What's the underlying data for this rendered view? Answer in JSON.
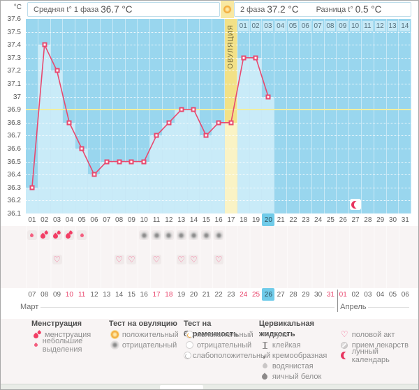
{
  "header": {
    "unit": "°C",
    "phase1_label": "Средняя t° 1 фаза",
    "phase1_value": "36.7 °C",
    "phase2_label": "2 фаза",
    "phase2_value": "37.2 °C",
    "diff_label": "Разница t°",
    "diff_value": "0.5 °C"
  },
  "chart_data": {
    "type": "line",
    "x": [
      1,
      2,
      3,
      4,
      5,
      6,
      7,
      8,
      9,
      10,
      11,
      12,
      13,
      14,
      15,
      16,
      17,
      18,
      19,
      20,
      21,
      22,
      23,
      24,
      25,
      26,
      27,
      28,
      29,
      30,
      31
    ],
    "values": [
      36.3,
      37.4,
      37.2,
      36.8,
      36.6,
      36.4,
      36.5,
      36.5,
      36.5,
      36.5,
      36.7,
      36.8,
      36.9,
      36.9,
      36.7,
      36.8,
      36.8,
      37.3,
      37.3,
      37.0,
      null,
      null,
      null,
      null,
      null,
      null,
      null,
      null,
      null,
      null,
      null
    ],
    "ylim": [
      36.1,
      37.6
    ],
    "ytick_step": 0.1,
    "yticks": [
      "37.6",
      "37.5",
      "37.4",
      "37.3",
      "37.2",
      "37.1",
      "37",
      "36.9",
      "36.8",
      "36.7",
      "36.6",
      "36.5",
      "36.4",
      "36.3",
      "36.2",
      "36.1"
    ],
    "coverline": 36.9,
    "ovulation_day": 17,
    "ovulation_label": "ОВУЛЯЦИЯ",
    "dpo_labels": [
      "01",
      "02",
      "03",
      "04",
      "05",
      "06",
      "07",
      "08",
      "09",
      "10",
      "11",
      "12",
      "13",
      "14"
    ],
    "today_day": 20,
    "lunar_mark_day": 27,
    "grid": "horizontal-dotted",
    "legend_position": "bottom"
  },
  "day_row": {
    "labels": [
      "01",
      "02",
      "03",
      "04",
      "05",
      "06",
      "07",
      "08",
      "09",
      "10",
      "11",
      "12",
      "13",
      "14",
      "15",
      "16",
      "17",
      "18",
      "19",
      "20",
      "21",
      "22",
      "23",
      "24",
      "25",
      "26",
      "27",
      "28",
      "29",
      "30",
      "31"
    ],
    "highlight": "20"
  },
  "marks": {
    "menstruation": [
      {
        "day": 1,
        "level": "small"
      },
      {
        "day": 2,
        "level": "heavy"
      },
      {
        "day": 3,
        "level": "heavy"
      },
      {
        "day": 4,
        "level": "heavy"
      },
      {
        "day": 5,
        "level": "small"
      }
    ],
    "ovulation_tests": [
      {
        "day": 10,
        "result": "negative"
      },
      {
        "day": 11,
        "result": "negative"
      },
      {
        "day": 12,
        "result": "negative"
      },
      {
        "day": 13,
        "result": "negative"
      },
      {
        "day": 14,
        "result": "negative"
      },
      {
        "day": 15,
        "result": "negative"
      },
      {
        "day": 16,
        "result": "negative"
      }
    ],
    "intercourse_days": [
      3,
      8,
      9,
      11,
      13,
      14,
      16
    ]
  },
  "calendar": {
    "dates": [
      {
        "label": "07"
      },
      {
        "label": "08"
      },
      {
        "label": "09"
      },
      {
        "label": "10",
        "red": true
      },
      {
        "label": "11",
        "red": true
      },
      {
        "label": "12"
      },
      {
        "label": "13"
      },
      {
        "label": "14"
      },
      {
        "label": "15"
      },
      {
        "label": "16"
      },
      {
        "label": "17",
        "red": true
      },
      {
        "label": "18",
        "red": true
      },
      {
        "label": "19"
      },
      {
        "label": "20"
      },
      {
        "label": "21"
      },
      {
        "label": "22"
      },
      {
        "label": "23"
      },
      {
        "label": "24",
        "red": true
      },
      {
        "label": "25",
        "red": true
      },
      {
        "label": "26",
        "today": true
      },
      {
        "label": "27"
      },
      {
        "label": "28"
      },
      {
        "label": "29"
      },
      {
        "label": "30"
      },
      {
        "label": "31",
        "red": true
      },
      {
        "label": "01",
        "red": true
      },
      {
        "label": "02"
      },
      {
        "label": "03"
      },
      {
        "label": "04"
      },
      {
        "label": "05"
      },
      {
        "label": "06"
      }
    ],
    "months": [
      {
        "name": "Март"
      },
      {
        "name": "Апрель",
        "start_index": 25
      }
    ]
  },
  "legend": {
    "columns": [
      {
        "header": "Менструация",
        "items": [
          {
            "icon": "drops-heavy",
            "label": "менструация"
          },
          {
            "icon": "drop-small",
            "label": "небольшие выделения"
          }
        ]
      },
      {
        "header": "Тест на овуляцию",
        "items": [
          {
            "icon": "sun",
            "label": "положительный"
          },
          {
            "icon": "test-negative",
            "label": "отрицательный"
          }
        ]
      },
      {
        "header": "Тест на беременность",
        "items": [
          {
            "icon": "preg-positive",
            "label": "положительный"
          },
          {
            "icon": "circle-outline",
            "label": "отрицательный"
          },
          {
            "icon": "preg-weak",
            "label": "слабоположительный"
          }
        ]
      },
      {
        "header": "Цервикальная жидкость",
        "items": [
          {
            "icon": "cross",
            "label": "сухо"
          },
          {
            "icon": "sticky",
            "label": "клейкая"
          },
          {
            "icon": "creamy",
            "label": "кремообразная"
          },
          {
            "icon": "drop-watery",
            "label": "водянистая"
          },
          {
            "icon": "drop-eggwhite",
            "label": "яичный белок"
          }
        ]
      },
      {
        "header": "",
        "items": [
          {
            "icon": "heart",
            "label": "половой акт"
          },
          {
            "icon": "pill",
            "label": "прием лекарств"
          },
          {
            "icon": "moon",
            "label": "лунный календарь"
          }
        ]
      }
    ]
  },
  "colors": {
    "line": "#e8496f",
    "chart_background": "#99d6ee",
    "fill_below_line": "#c9ebf8",
    "ovulation_column": "#f2e187",
    "ovulation_fill": "#faf3c5",
    "coverline": "#f1efa0",
    "today_highlight": "#70cbe9",
    "weekend_date": "#e8436b",
    "menstruation_drop": "#f23d64"
  }
}
